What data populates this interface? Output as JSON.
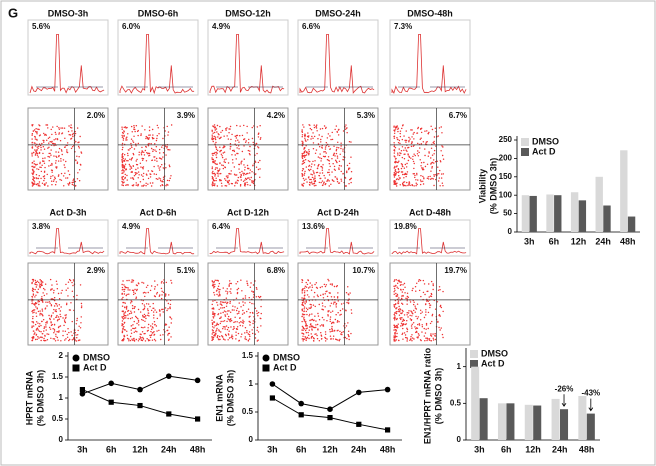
{
  "panel_label": "G",
  "flow": {
    "rows": [
      {
        "titles": [
          "DMSO-3h",
          "DMSO-6h",
          "DMSO-12h",
          "DMSO-24h",
          "DMSO-48h"
        ],
        "hist_pct": [
          "5.6%",
          "6.0%",
          "4.9%",
          "6.6%",
          "7.3%"
        ],
        "dot_pct": [
          "2.0%",
          "3.9%",
          "4.2%",
          "5.3%",
          "6.7%"
        ]
      },
      {
        "titles": [
          "Act D-3h",
          "Act D-6h",
          "Act D-12h",
          "Act D-24h",
          "Act D-48h"
        ],
        "hist_pct": [
          "3.8%",
          "4.9%",
          "6.4%",
          "13.6%",
          "19.8%"
        ],
        "dot_pct": [
          "2.9%",
          "5.1%",
          "6.8%",
          "10.7%",
          "19.7%"
        ]
      }
    ]
  },
  "chart_data": [
    {
      "type": "bar",
      "ylabel": [
        "Viability",
        "(% DMSO 3h)"
      ],
      "categories": [
        "3h",
        "6h",
        "12h",
        "24h",
        "48h"
      ],
      "series": [
        {
          "name": "DMSO",
          "color": "#d9d9d9",
          "values": [
            100,
            102,
            108,
            150,
            222
          ]
        },
        {
          "name": "Act D",
          "color": "#595959",
          "values": [
            98,
            100,
            86,
            72,
            42
          ]
        }
      ],
      "ylim": [
        0,
        250
      ],
      "yticks": [
        0,
        50,
        100,
        150,
        200,
        250
      ],
      "legend": "top-left"
    },
    {
      "type": "line",
      "ylabel": [
        "HPRT mRNA",
        "(% DMSO 3h)"
      ],
      "categories": [
        "3h",
        "6h",
        "12h",
        "24h",
        "48h"
      ],
      "series": [
        {
          "name": "DMSO",
          "color": "#000000",
          "marker": "circle",
          "values": [
            1.1,
            1.35,
            1.2,
            1.52,
            1.42
          ]
        },
        {
          "name": "Act D",
          "color": "#000000",
          "marker": "square",
          "values": [
            1.2,
            0.9,
            0.82,
            0.62,
            0.5
          ]
        }
      ],
      "ylim": [
        0,
        2
      ],
      "yticks": [
        0,
        0.5,
        1,
        1.5,
        2
      ],
      "legend": "top-left"
    },
    {
      "type": "line",
      "ylabel": [
        "EN1 mRNA",
        "(% DMSO 3h)"
      ],
      "categories": [
        "3h",
        "6h",
        "12h",
        "24h",
        "48h"
      ],
      "series": [
        {
          "name": "DMSO",
          "color": "#000000",
          "marker": "circle",
          "values": [
            1.0,
            0.65,
            0.55,
            0.85,
            0.9
          ]
        },
        {
          "name": "Act D",
          "color": "#000000",
          "marker": "square",
          "values": [
            0.75,
            0.45,
            0.4,
            0.28,
            0.18
          ]
        }
      ],
      "ylim": [
        0,
        1.5
      ],
      "yticks": [
        0,
        0.5,
        1,
        1.5
      ],
      "legend": "top-left"
    },
    {
      "type": "bar",
      "ylabel": [
        "EN1/HPRT mRNA ratio",
        "(% DMSO 3h)"
      ],
      "categories": [
        "3h",
        "6h",
        "12h",
        "24h",
        "48h"
      ],
      "series": [
        {
          "name": "DMSO",
          "color": "#d9d9d9",
          "values": [
            1.0,
            0.5,
            0.48,
            0.56,
            0.6
          ]
        },
        {
          "name": "Act D",
          "color": "#595959",
          "values": [
            0.57,
            0.5,
            0.47,
            0.42,
            0.36
          ]
        }
      ],
      "ylim": [
        0,
        1.2
      ],
      "yticks": [
        0,
        0.5,
        1
      ],
      "legend": "top-left",
      "annotations": [
        {
          "text": "-26%",
          "x": "24h"
        },
        {
          "text": "-43%",
          "x": "48h"
        }
      ]
    }
  ]
}
